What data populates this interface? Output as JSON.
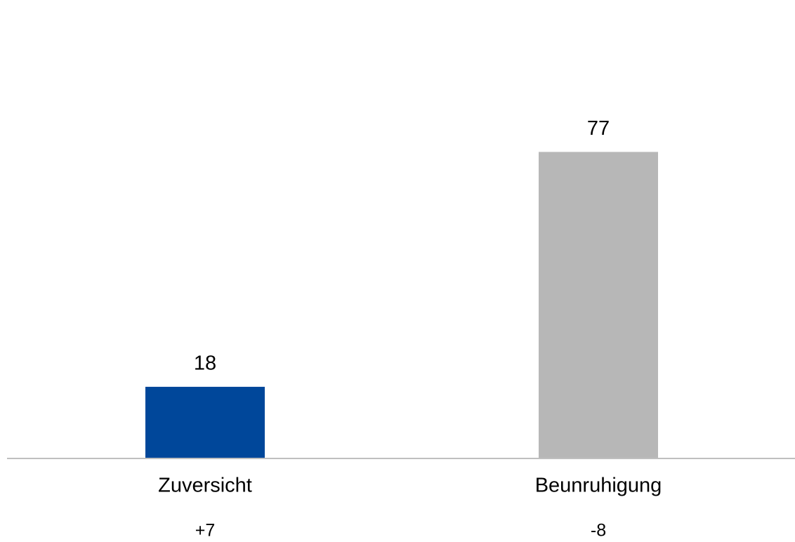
{
  "chart_data": {
    "type": "bar",
    "categories": [
      "Zuversicht",
      "Beunruhigung"
    ],
    "values": [
      18,
      77
    ],
    "changes": [
      "+7",
      "-8"
    ],
    "colors": [
      "#00479a",
      "#b7b7b7"
    ],
    "ylim": [
      0,
      100
    ]
  }
}
